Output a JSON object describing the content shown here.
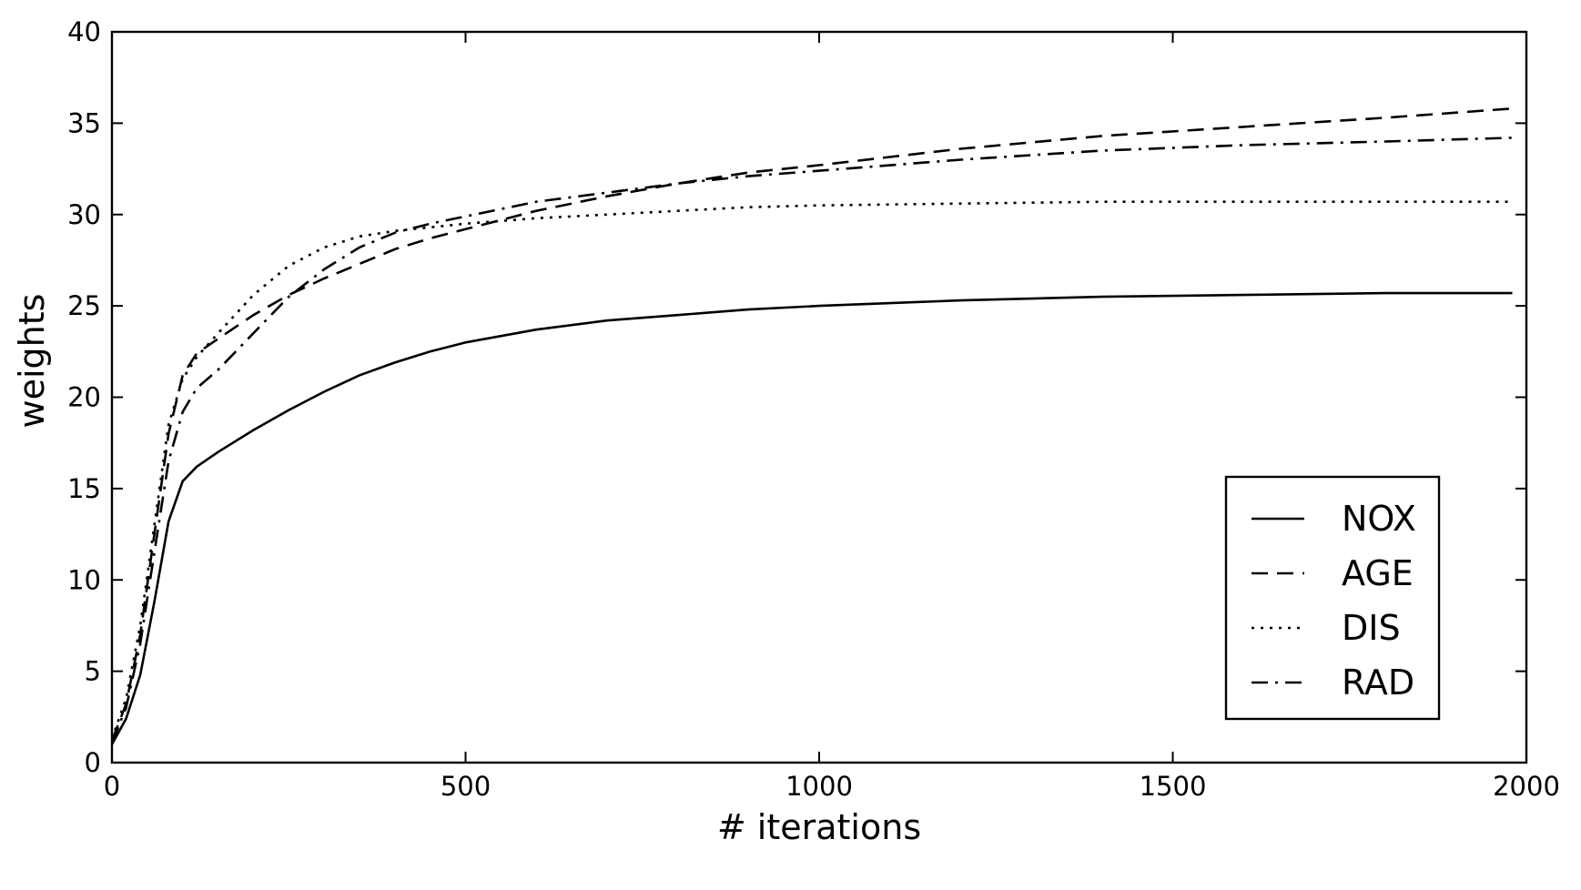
{
  "chart_data": {
    "type": "line",
    "title": "",
    "xlabel": "# iterations",
    "ylabel": "weights",
    "xlim": [
      0,
      2000
    ],
    "ylim": [
      0,
      40
    ],
    "xticks": [
      0,
      500,
      1000,
      1500,
      2000
    ],
    "yticks": [
      0,
      5,
      10,
      15,
      20,
      25,
      30,
      35,
      40
    ],
    "grid": false,
    "legend_position": "lower-right",
    "x": [
      0,
      20,
      40,
      60,
      80,
      100,
      120,
      150,
      200,
      250,
      300,
      350,
      400,
      450,
      500,
      600,
      700,
      800,
      900,
      1000,
      1200,
      1400,
      1600,
      1800,
      1980
    ],
    "series": [
      {
        "name": "NOX",
        "style": "solid",
        "values": [
          1.0,
          2.4,
          4.8,
          8.8,
          13.2,
          15.4,
          16.2,
          17.0,
          18.2,
          19.3,
          20.3,
          21.2,
          21.9,
          22.5,
          23.0,
          23.7,
          24.2,
          24.5,
          24.8,
          25.0,
          25.3,
          25.5,
          25.6,
          25.7,
          25.7
        ]
      },
      {
        "name": "AGE",
        "style": "dashed",
        "values": [
          1.2,
          3.2,
          7.0,
          12.5,
          18.0,
          21.2,
          22.4,
          23.2,
          24.5,
          25.6,
          26.5,
          27.3,
          28.1,
          28.7,
          29.2,
          30.2,
          31.0,
          31.7,
          32.3,
          32.7,
          33.6,
          34.3,
          34.8,
          35.3,
          35.8
        ]
      },
      {
        "name": "DIS",
        "style": "dotted",
        "values": [
          1.3,
          3.5,
          7.5,
          13.0,
          18.5,
          21.0,
          22.2,
          23.5,
          25.6,
          27.2,
          28.2,
          28.8,
          29.1,
          29.3,
          29.5,
          29.8,
          30.0,
          30.2,
          30.4,
          30.5,
          30.6,
          30.7,
          30.7,
          30.7,
          30.7
        ]
      },
      {
        "name": "RAD",
        "style": "dashdot",
        "values": [
          1.1,
          3.0,
          6.5,
          11.5,
          16.5,
          19.2,
          20.5,
          21.5,
          23.5,
          25.5,
          27.0,
          28.2,
          29.0,
          29.5,
          29.9,
          30.7,
          31.2,
          31.7,
          32.1,
          32.4,
          33.0,
          33.5,
          33.8,
          34.0,
          34.2
        ]
      }
    ]
  }
}
